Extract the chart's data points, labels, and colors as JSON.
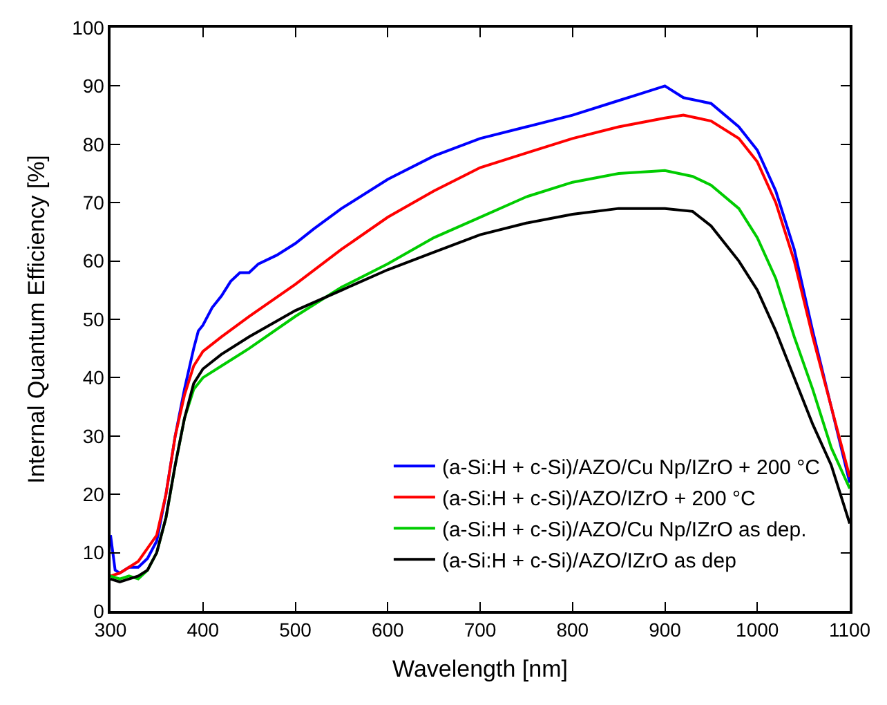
{
  "chart_data": {
    "type": "line",
    "xlabel": "Wavelength [nm]",
    "ylabel": "Internal Quantum Efficiency [%]",
    "xlim": [
      300,
      1100
    ],
    "xticks": [
      300,
      400,
      500,
      600,
      700,
      800,
      900,
      1000,
      1100
    ],
    "ylim": [
      0,
      100
    ],
    "yticks": [
      0,
      10,
      20,
      30,
      40,
      50,
      60,
      70,
      80,
      90,
      100
    ],
    "legend": "bottom right",
    "marker": "none",
    "line_style": "solid",
    "series": [
      {
        "name": "(a-Si:H + c-Si)/AZO/Cu Np/IZrO + 200 °C",
        "color": "#0000ff",
        "x": [
          300,
          305,
          310,
          320,
          330,
          340,
          350,
          360,
          370,
          380,
          390,
          395,
          400,
          410,
          420,
          430,
          440,
          450,
          460,
          480,
          500,
          520,
          550,
          600,
          650,
          700,
          750,
          800,
          850,
          870,
          900,
          920,
          950,
          980,
          1000,
          1020,
          1040,
          1060,
          1080,
          1100
        ],
        "values": [
          13,
          7,
          6.5,
          7.5,
          7.5,
          9,
          12,
          20,
          30,
          38,
          45,
          48,
          49,
          52,
          54,
          56.5,
          58,
          58,
          59.5,
          61,
          63,
          65.5,
          69,
          74,
          78,
          81,
          83,
          85,
          87.5,
          88.5,
          90,
          88,
          87,
          83,
          79,
          72,
          62,
          48,
          35,
          22
        ]
      },
      {
        "name": "(a-Si:H + c-Si)/AZO/IZrO + 200 °C",
        "color": "#ff0000",
        "x": [
          300,
          310,
          330,
          350,
          360,
          370,
          380,
          390,
          400,
          420,
          450,
          500,
          550,
          600,
          650,
          700,
          750,
          800,
          850,
          900,
          920,
          950,
          980,
          1000,
          1020,
          1040,
          1060,
          1080,
          1100
        ],
        "values": [
          6,
          6.5,
          8.5,
          13,
          20,
          30,
          37,
          42,
          44.5,
          47,
          50.5,
          56,
          62,
          67.5,
          72,
          76,
          78.5,
          81,
          83,
          84.5,
          85,
          84,
          81,
          77,
          70,
          60,
          47,
          35,
          23
        ]
      },
      {
        "name": "(a-Si:H + c-Si)/AZO/Cu Np/IZrO as dep.",
        "color": "#00cc00",
        "x": [
          300,
          310,
          320,
          330,
          340,
          350,
          360,
          370,
          380,
          390,
          400,
          420,
          450,
          500,
          550,
          600,
          650,
          700,
          750,
          800,
          850,
          900,
          930,
          950,
          980,
          1000,
          1020,
          1040,
          1060,
          1080,
          1100
        ],
        "values": [
          6,
          5.5,
          6,
          5.5,
          7,
          10,
          16,
          25,
          33,
          38,
          40,
          42,
          45,
          50.5,
          55.5,
          59.5,
          64,
          67.5,
          71,
          73.5,
          75,
          75.5,
          74.5,
          73,
          69,
          64,
          57,
          47,
          38,
          28,
          21
        ]
      },
      {
        "name": "(a-Si:H + c-Si)/AZO/IZrO as dep",
        "color": "#000000",
        "x": [
          300,
          310,
          320,
          330,
          340,
          350,
          360,
          370,
          380,
          390,
          400,
          420,
          450,
          500,
          550,
          600,
          650,
          700,
          750,
          800,
          850,
          900,
          930,
          950,
          980,
          1000,
          1020,
          1040,
          1060,
          1080,
          1100
        ],
        "values": [
          5.5,
          5,
          5.5,
          6,
          7,
          10,
          16,
          25,
          33,
          39,
          41.5,
          44,
          47,
          51.5,
          55,
          58.5,
          61.5,
          64.5,
          66.5,
          68,
          69,
          69,
          68.5,
          66,
          60,
          55,
          48,
          40,
          32,
          25,
          15
        ]
      }
    ]
  }
}
